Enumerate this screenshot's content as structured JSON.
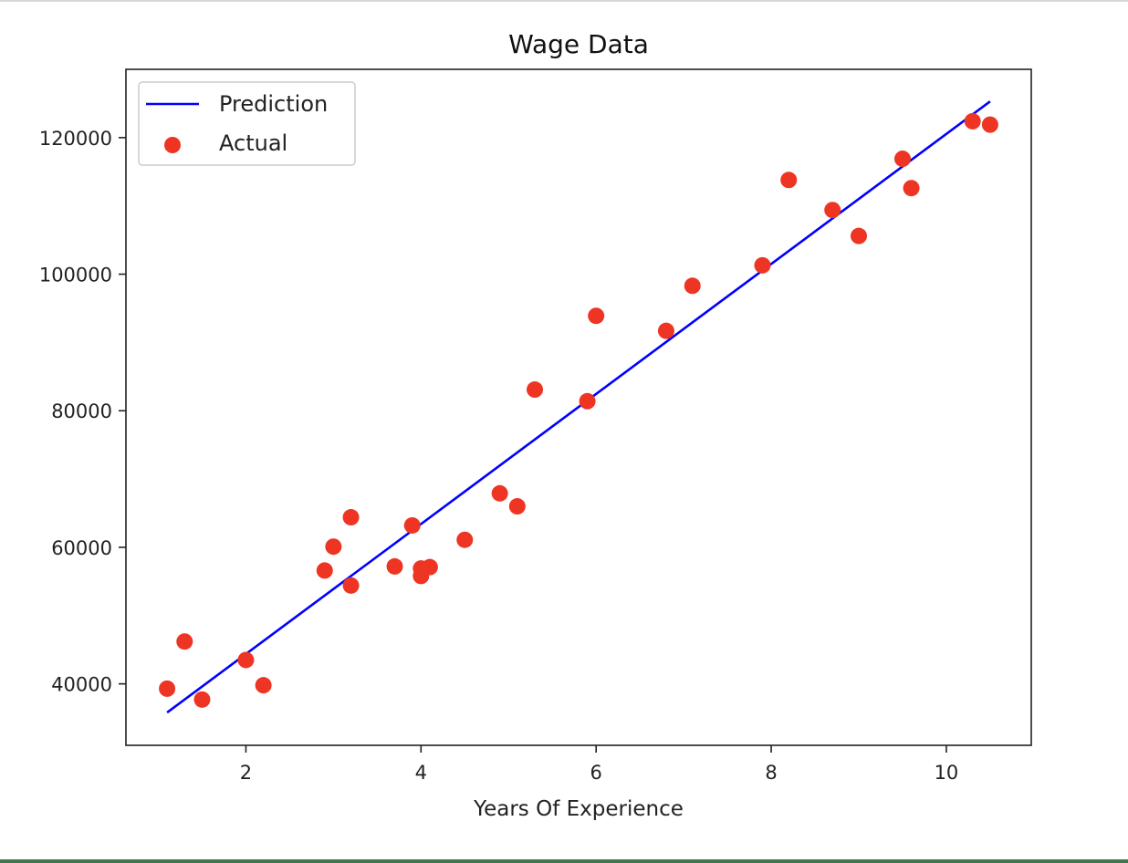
{
  "chart_data": {
    "type": "scatter",
    "title": "Wage Data",
    "xlabel": "Years Of Experience",
    "ylabel": "",
    "xlim": [
      0.63,
      10.97
    ],
    "ylim": [
      31000,
      130000
    ],
    "xticks": [
      2,
      4,
      6,
      8,
      10
    ],
    "yticks": [
      40000,
      60000,
      80000,
      100000,
      120000
    ],
    "grid": false,
    "legend_position": "top-left",
    "series": [
      {
        "name": "Prediction",
        "kind": "line",
        "color": "#0000ff",
        "x": [
          1.1,
          10.5
        ],
        "y": [
          35800,
          125300
        ]
      },
      {
        "name": "Actual",
        "kind": "scatter",
        "color": "#ee3524",
        "x": [
          1.1,
          1.3,
          1.5,
          2.0,
          2.2,
          2.9,
          3.0,
          3.2,
          3.2,
          3.7,
          3.9,
          4.0,
          4.0,
          4.1,
          4.5,
          4.9,
          5.1,
          5.3,
          5.9,
          6.0,
          6.8,
          7.1,
          7.9,
          8.2,
          8.7,
          9.0,
          9.5,
          9.6,
          10.3,
          10.5
        ],
        "y": [
          39300,
          46200,
          37700,
          43500,
          39800,
          56600,
          60100,
          54400,
          64400,
          57200,
          63200,
          55800,
          56900,
          57100,
          61100,
          67900,
          66000,
          83100,
          81400,
          93900,
          91700,
          98300,
          101300,
          113800,
          109400,
          105600,
          116900,
          112600,
          122400,
          121900
        ]
      }
    ]
  }
}
